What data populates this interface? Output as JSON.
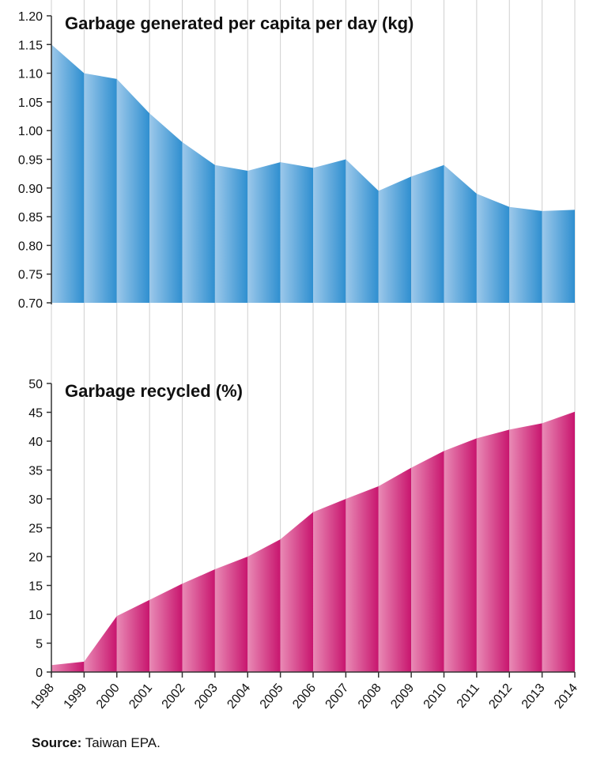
{
  "chart_data": [
    {
      "type": "area",
      "title": "Garbage generated per capita per day (kg)",
      "x": [
        "1998",
        "1999",
        "2000",
        "2001",
        "2002",
        "2003",
        "2004",
        "2005",
        "2006",
        "2007",
        "2008",
        "2009",
        "2010",
        "2011",
        "2012",
        "2013",
        "2014"
      ],
      "values": [
        1.15,
        1.1,
        1.09,
        1.03,
        0.98,
        0.94,
        0.93,
        0.945,
        0.935,
        0.95,
        0.895,
        0.92,
        0.94,
        0.89,
        0.867,
        0.86,
        0.862
      ],
      "ylim": [
        0.7,
        1.2
      ],
      "yticks": [
        "0.70",
        "0.75",
        "0.80",
        "0.85",
        "0.90",
        "0.95",
        "1.00",
        "1.05",
        "1.10",
        "1.15",
        "1.20"
      ],
      "color": "#2f8fd0",
      "color_light": "#9cc8ea"
    },
    {
      "type": "area",
      "title": "Garbage recycled (%)",
      "x": [
        "1998",
        "1999",
        "2000",
        "2001",
        "2002",
        "2003",
        "2004",
        "2005",
        "2006",
        "2007",
        "2008",
        "2009",
        "2010",
        "2011",
        "2012",
        "2013",
        "2014"
      ],
      "values": [
        1.2,
        1.8,
        9.7,
        12.5,
        15.3,
        17.8,
        20.0,
        23.0,
        27.7,
        30.0,
        32.2,
        35.4,
        38.3,
        40.5,
        42.0,
        43.1,
        45.1
      ],
      "ylim": [
        0,
        50
      ],
      "yticks": [
        "0",
        "5",
        "10",
        "15",
        "20",
        "25",
        "30",
        "35",
        "40",
        "45",
        "50"
      ],
      "color": "#c8156e",
      "color_light": "#e98ab5"
    }
  ],
  "source": {
    "label": "Source:",
    "text": " Taiwan EPA."
  }
}
